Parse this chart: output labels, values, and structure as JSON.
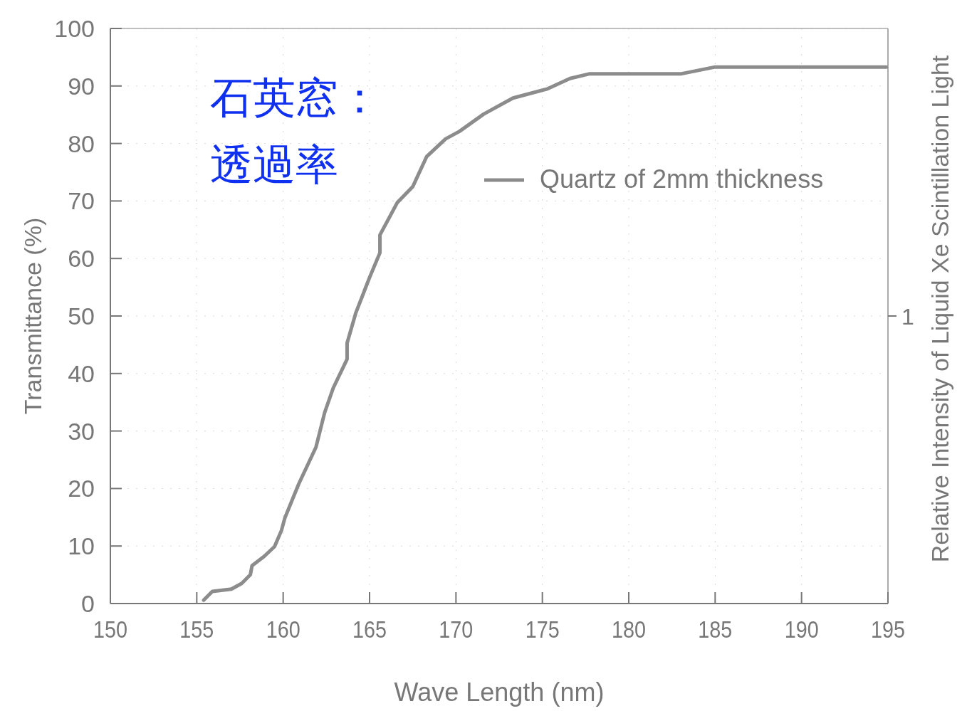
{
  "chart_data": {
    "type": "line",
    "xlabel": "Wave Length (nm)",
    "ylabel": "Transmittance (%)",
    "y2label": "Relative Intensity of Liquid Xe Scintillation Light",
    "annotations": [
      "石英窓：",
      "透過率",
      "1"
    ],
    "xlim": [
      150,
      195
    ],
    "xticks": [
      150,
      155,
      160,
      165,
      170,
      175,
      180,
      185,
      190,
      195
    ],
    "ylim": [
      0,
      100
    ],
    "yticks": [
      0,
      10,
      20,
      30,
      40,
      50,
      60,
      70,
      80,
      90,
      100
    ],
    "grid": true,
    "legend": "top right",
    "marker": "none",
    "line_style": "solid",
    "series": [
      {
        "name": "Quartz of 2mm thickness",
        "color": "#8c8c8c",
        "x": [
          155.4,
          155.9,
          157.0,
          157.6,
          158.1,
          158.2,
          158.9,
          159.5,
          159.9,
          160.1,
          160.9,
          161.9,
          162.4,
          162.9,
          163.7,
          163.7,
          164.2,
          165.0,
          165.6,
          165.6,
          166.6,
          167.5,
          168.3,
          169.4,
          170.2,
          171.6,
          173.3,
          175.3,
          176.6,
          177.7,
          183.0,
          185.0,
          194.9
        ],
        "values": [
          0.6,
          2.1,
          2.5,
          3.5,
          5.0,
          6.6,
          8.2,
          9.9,
          12.7,
          14.9,
          20.8,
          27.2,
          33.2,
          37.5,
          42.5,
          45.3,
          50.5,
          56.7,
          61.0,
          64.1,
          69.7,
          72.5,
          77.7,
          80.8,
          82.1,
          85.1,
          87.9,
          89.5,
          91.3,
          92.1,
          92.1,
          93.3,
          93.3
        ]
      }
    ]
  }
}
